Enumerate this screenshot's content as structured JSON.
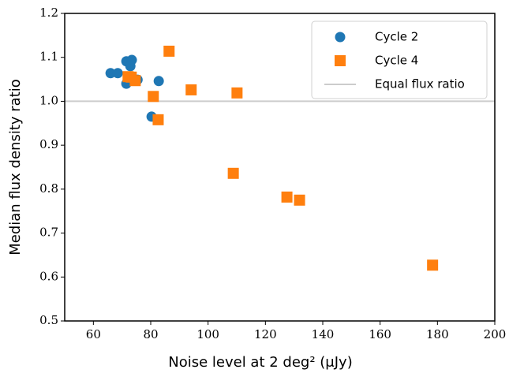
{
  "chart_data": {
    "type": "scatter",
    "xlabel": "Noise level at 2 deg² (μJy)",
    "ylabel": "Median flux density ratio",
    "xlim": [
      50,
      200
    ],
    "ylim": [
      0.5,
      1.2
    ],
    "xticks": [
      60,
      80,
      100,
      120,
      140,
      160,
      180,
      200
    ],
    "yticks": [
      0.5,
      0.6,
      0.7,
      0.8,
      0.9,
      {
        "value": 1,
        "label": "1.0"
      },
      1.1,
      1.2
    ],
    "legend": "upper right",
    "series": [
      {
        "name": "Cycle 2",
        "color": "#1f77b4",
        "marker": "circle",
        "x": [
          66,
          68.5,
          71.5,
          73.4,
          72.9,
          71.5,
          75.4,
          80.3,
          82.8
        ],
        "values": [
          1.064,
          1.064,
          1.091,
          1.094,
          1.08,
          1.04,
          1.049,
          0.965,
          1.046
        ]
      },
      {
        "name": "Cycle 4",
        "color": "#ff7f0e",
        "marker": "square",
        "x": [
          86.4,
          72.1,
          73.2,
          74.6,
          80.9,
          82.6,
          94.1,
          110.1,
          108.8,
          127.5,
          131.9,
          178.3
        ],
        "values": [
          1.114,
          1.056,
          1.055,
          1.047,
          1.011,
          0.958,
          1.026,
          1.019,
          0.836,
          0.782,
          0.775,
          0.627
        ]
      }
    ],
    "reference_line": {
      "name": "Equal flux ratio",
      "value": 1,
      "color": "#cccccc"
    }
  }
}
